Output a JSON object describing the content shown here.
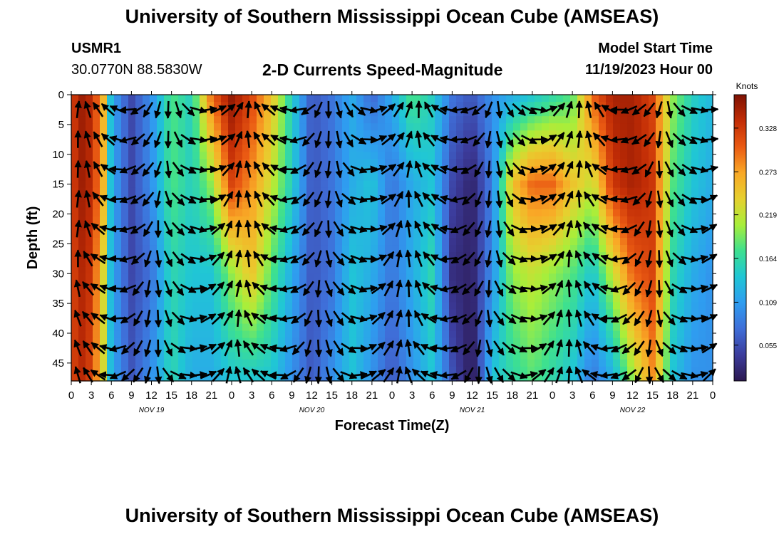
{
  "page": {
    "title": "University of Southern Mississippi Ocean Cube (AMSEAS)",
    "footer_title": "University of Southern Mississippi Ocean Cube (AMSEAS)",
    "station_id": "USMR1",
    "coordinates": "30.0770N  88.5830W",
    "subtitle": "2-D Currents Speed-Magnitude",
    "model_start_label": "Model Start Time",
    "model_start_value": "11/19/2023 Hour 00"
  },
  "chart_data": {
    "type": "heatmap",
    "title": "2-D Currents Speed-Magnitude",
    "xlabel": "Forecast Time(Z)",
    "ylabel": "Depth (ft)",
    "colorbar_label": "Knots",
    "x_tick_labels": [
      "0",
      "3",
      "6",
      "9",
      "12",
      "15",
      "18",
      "21",
      "0",
      "3",
      "6",
      "9",
      "12",
      "15",
      "18",
      "21",
      "0",
      "3",
      "6",
      "9",
      "12",
      "15",
      "18",
      "21",
      "0",
      "3",
      "6",
      "9",
      "12",
      "15",
      "18",
      "21",
      "0"
    ],
    "date_labels": [
      {
        "label": "NOV 19",
        "hour": 12
      },
      {
        "label": "NOV 20",
        "hour": 36
      },
      {
        "label": "NOV 21",
        "hour": 60
      },
      {
        "label": "NOV 22",
        "hour": 84
      }
    ],
    "y_ticks": [
      0,
      5,
      10,
      15,
      20,
      25,
      30,
      35,
      40,
      45
    ],
    "xlim_hours": [
      0,
      96
    ],
    "ylim_ft": [
      0,
      48
    ],
    "colorbar_ticks": [
      0.055,
      0.109,
      0.164,
      0.219,
      0.273,
      0.328
    ],
    "colorbar_range": [
      0.01,
      0.37
    ],
    "speed_time_hours": [
      0,
      1,
      3,
      5,
      6,
      9,
      12,
      15,
      18,
      21,
      24,
      27,
      30,
      33,
      36,
      39,
      42,
      45,
      48,
      51,
      54,
      57,
      60,
      63,
      66,
      69,
      72,
      75,
      78,
      81,
      84,
      87,
      90,
      93,
      96
    ],
    "speed_depth_ft": [
      0,
      15,
      30,
      48
    ],
    "speed_knots": [
      [
        0.3,
        0.36,
        0.34,
        0.25,
        0.12,
        0.05,
        0.1,
        0.18,
        0.15,
        0.3,
        0.36,
        0.32,
        0.25,
        0.15,
        0.06,
        0.08,
        0.12,
        0.07,
        0.12,
        0.18,
        0.15,
        0.08,
        0.06,
        0.1,
        0.12,
        0.14,
        0.16,
        0.18,
        0.3,
        0.35,
        0.35,
        0.32,
        0.2,
        0.15,
        0.13
      ],
      [
        0.3,
        0.36,
        0.34,
        0.25,
        0.12,
        0.05,
        0.1,
        0.18,
        0.15,
        0.2,
        0.32,
        0.28,
        0.22,
        0.15,
        0.06,
        0.08,
        0.12,
        0.14,
        0.08,
        0.12,
        0.14,
        0.05,
        0.02,
        0.09,
        0.25,
        0.3,
        0.3,
        0.25,
        0.22,
        0.33,
        0.35,
        0.33,
        0.18,
        0.14,
        0.12
      ],
      [
        0.3,
        0.35,
        0.33,
        0.22,
        0.12,
        0.05,
        0.08,
        0.16,
        0.14,
        0.14,
        0.2,
        0.25,
        0.18,
        0.12,
        0.06,
        0.08,
        0.14,
        0.12,
        0.08,
        0.12,
        0.16,
        0.03,
        0.02,
        0.1,
        0.2,
        0.22,
        0.2,
        0.18,
        0.14,
        0.22,
        0.3,
        0.32,
        0.16,
        0.12,
        0.1
      ],
      [
        0.3,
        0.35,
        0.32,
        0.22,
        0.12,
        0.06,
        0.1,
        0.16,
        0.12,
        0.12,
        0.14,
        0.14,
        0.14,
        0.1,
        0.06,
        0.1,
        0.14,
        0.1,
        0.06,
        0.1,
        0.14,
        0.06,
        0.01,
        0.14,
        0.16,
        0.18,
        0.16,
        0.14,
        0.08,
        0.12,
        0.2,
        0.28,
        0.14,
        0.1,
        0.1
      ]
    ],
    "vectors": "current direction arrows (u,v) sampled every 1.5 h at 10 depth levels"
  },
  "colors": {
    "axis": "#000000",
    "colormap": [
      "#2b1850",
      "#3c3c9c",
      "#3f6ed8",
      "#2f9df0",
      "#20c6d5",
      "#3ee08f",
      "#a8ee3a",
      "#e6d02f",
      "#f9a826",
      "#ea5a13",
      "#c22d06",
      "#7e1203"
    ]
  }
}
